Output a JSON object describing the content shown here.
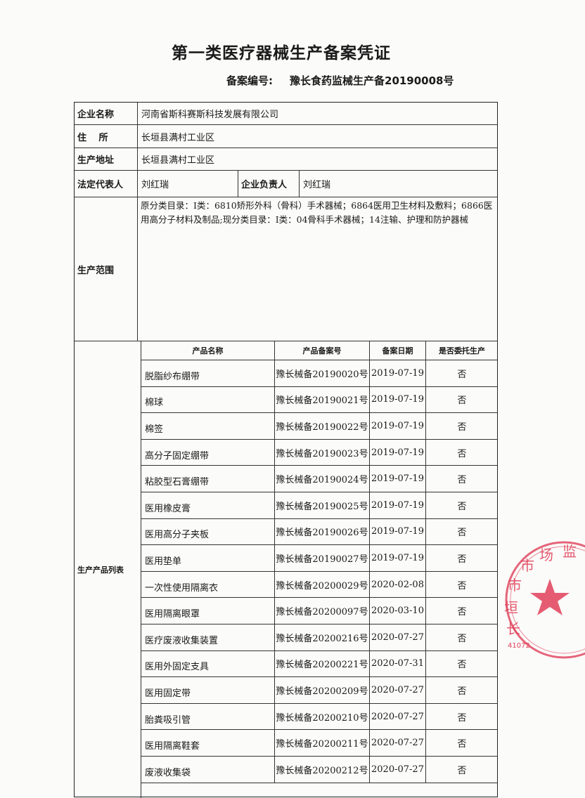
{
  "title": "第一类医疗器械生产备案凭证",
  "record": {
    "label": "备案编号:",
    "value": "豫长食药监械生产备20190008号"
  },
  "fields": {
    "company_label": "企业名称",
    "company": "河南省斯科赛斯科技发展有限公司",
    "address_label": "住　 所",
    "address": "长垣县满村工业区",
    "site_label": "生产地址",
    "site": "长垣县满村工业区",
    "legal_label": "法定代表人",
    "legal": "刘红瑞",
    "head_label": "企业负责人",
    "head": "刘红瑞",
    "scope_label": "生产范围",
    "scope": "原分类目录：Ⅰ类：6810矫形外科（骨科）手术器械；6864医用卫生材料及敷料；6866医用高分子材料及制品;现分类目录：Ⅰ类：04骨科手术器械；14注输、护理和防护器械",
    "products_label": "生产产品列表"
  },
  "products": {
    "headers": [
      "产品名称",
      "产品备案号",
      "备案日期",
      "是否委托生产"
    ],
    "rows": [
      [
        "脱脂纱布绷带",
        "豫长械备20190020号",
        "2019-07-19",
        "否"
      ],
      [
        "棉球",
        "豫长械备20190021号",
        "2019-07-19",
        "否"
      ],
      [
        "棉签",
        "豫长械备20190022号",
        "2019-07-19",
        "否"
      ],
      [
        "高分子固定绷带",
        "豫长械备20190023号",
        "2019-07-19",
        "否"
      ],
      [
        "粘胶型石膏绷带",
        "豫长械备20190024号",
        "2019-07-19",
        "否"
      ],
      [
        "医用橡皮膏",
        "豫长械备20190025号",
        "2019-07-19",
        "否"
      ],
      [
        "医用高分子夹板",
        "豫长械备20190026号",
        "2019-07-19",
        "否"
      ],
      [
        "医用垫单",
        "豫长械备20190027号",
        "2019-07-19",
        "否"
      ],
      [
        "一次性使用隔离衣",
        "豫长械备20200029号",
        "2020-02-08",
        "否"
      ],
      [
        "医用隔离眼罩",
        "豫长械备20200097号",
        "2020-03-10",
        "否"
      ],
      [
        "医疗废液收集装置",
        "豫长械备20200216号",
        "2020-07-27",
        "否"
      ],
      [
        "医用外固定支具",
        "豫长械备20200221号",
        "2020-07-31",
        "否"
      ],
      [
        "医用固定带",
        "豫长械备20200209号",
        "2020-07-27",
        "否"
      ],
      [
        "胎粪吸引管",
        "豫长械备20200210号",
        "2020-07-27",
        "否"
      ],
      [
        "医用隔离鞋套",
        "豫长械备20200211号",
        "2020-07-27",
        "否"
      ],
      [
        "废液收集袋",
        "豫长械备20200212号",
        "2020-07-27",
        "否"
      ]
    ]
  },
  "seal": {
    "text": "长垣市市场监",
    "code": "41072",
    "color": "#e0405a"
  }
}
